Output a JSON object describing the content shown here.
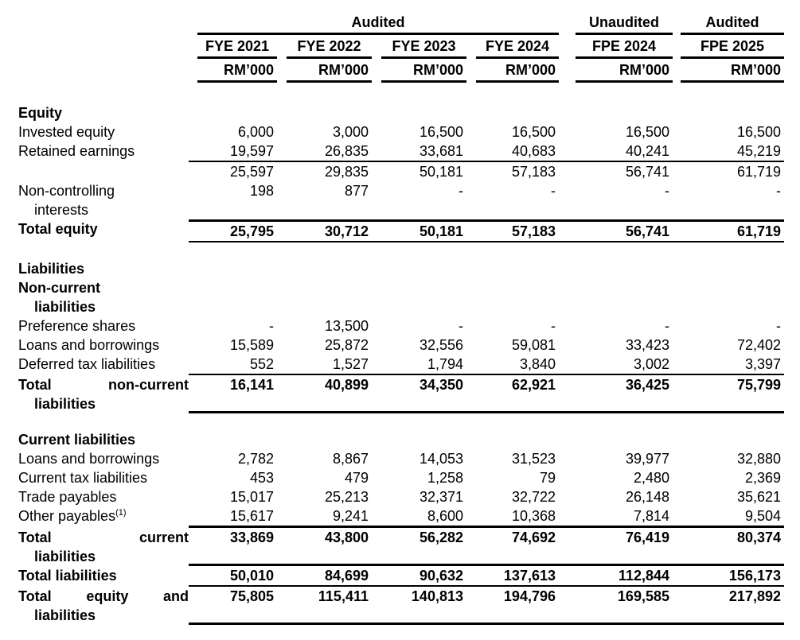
{
  "header": {
    "groups": [
      {
        "label": "Audited",
        "span": 4
      },
      {
        "label": "Unaudited",
        "span": 1
      },
      {
        "label": "Audited",
        "span": 1
      }
    ],
    "columns": [
      "FYE 2021",
      "FYE 2022",
      "FYE 2023",
      "FYE 2024",
      "FPE 2024",
      "FPE 2025"
    ],
    "units": [
      "RM’000",
      "RM’000",
      "RM’000",
      "RM’000",
      "RM’000",
      "RM’000"
    ]
  },
  "rows": [
    {
      "type": "section",
      "lines": [
        "Equity"
      ]
    },
    {
      "type": "item",
      "lines": [
        "Invested equity"
      ],
      "values": [
        "6,000",
        "3,000",
        "16,500",
        "16,500",
        "16,500",
        "16,500"
      ]
    },
    {
      "type": "item",
      "lines": [
        "Retained earnings"
      ],
      "values": [
        "19,597",
        "26,835",
        "33,681",
        "40,683",
        "40,241",
        "45,219"
      ],
      "border_bottom": "thin"
    },
    {
      "type": "item",
      "lines": [],
      "values": [
        "25,597",
        "29,835",
        "50,181",
        "57,183",
        "56,741",
        "61,719"
      ]
    },
    {
      "type": "item",
      "lines": [
        "Non-controlling",
        "interests"
      ],
      "values": [
        "198",
        "877",
        "-",
        "-",
        "-",
        "-"
      ],
      "pad": true
    },
    {
      "type": "total",
      "lines": [
        "Total equity"
      ],
      "values": [
        "25,795",
        "30,712",
        "50,181",
        "57,183",
        "56,741",
        "61,719"
      ],
      "border_top": "thick",
      "border_bottom": "thin"
    },
    {
      "type": "spacer"
    },
    {
      "type": "section",
      "lines": [
        "Liabilities"
      ]
    },
    {
      "type": "section",
      "lines": [
        "Non-current",
        "liabilities"
      ]
    },
    {
      "type": "item",
      "lines": [
        "Preference shares"
      ],
      "values": [
        "-",
        "13,500",
        "-",
        "-",
        "-",
        "-"
      ]
    },
    {
      "type": "item",
      "lines": [
        "Loans and borrowings"
      ],
      "values": [
        "15,589",
        "25,872",
        "32,556",
        "59,081",
        "33,423",
        "72,402"
      ]
    },
    {
      "type": "item",
      "lines": [
        "Deferred tax liabilities"
      ],
      "values": [
        "552",
        "1,527",
        "1,794",
        "3,840",
        "3,002",
        "3,397"
      ],
      "border_bottom": "thin"
    },
    {
      "type": "total",
      "lines": [
        "Total non-current",
        "liabilities"
      ],
      "justify": true,
      "values": [
        "16,141",
        "40,899",
        "34,350",
        "62,921",
        "36,425",
        "75,799"
      ],
      "border_bottom": "thick",
      "pad": true
    },
    {
      "type": "spacer"
    },
    {
      "type": "section",
      "lines": [
        "Current liabilities"
      ]
    },
    {
      "type": "item",
      "lines": [
        "Loans and borrowings"
      ],
      "values": [
        "2,782",
        "8,867",
        "14,053",
        "31,523",
        "39,977",
        "32,880"
      ]
    },
    {
      "type": "item",
      "lines": [
        "Current tax liabilities"
      ],
      "values": [
        "453",
        "479",
        "1,258",
        "79",
        "2,480",
        "2,369"
      ]
    },
    {
      "type": "item",
      "lines": [
        "Trade payables"
      ],
      "values": [
        "15,017",
        "25,213",
        "32,371",
        "32,722",
        "26,148",
        "35,621"
      ]
    },
    {
      "type": "item",
      "lines": [
        "Other payables"
      ],
      "sup": "(1)",
      "values": [
        "15,617",
        "9,241",
        "8,600",
        "10,368",
        "7,814",
        "9,504"
      ],
      "border_bottom": "thick"
    },
    {
      "type": "total",
      "lines": [
        "Total current",
        "liabilities"
      ],
      "justify": true,
      "values": [
        "33,869",
        "43,800",
        "56,282",
        "74,692",
        "76,419",
        "80,374"
      ],
      "border_bottom": "thick",
      "pad": true
    },
    {
      "type": "total",
      "lines": [
        "Total liabilities"
      ],
      "values": [
        "50,010",
        "84,699",
        "90,632",
        "137,613",
        "112,844",
        "156,173"
      ],
      "border_bottom": "thin"
    },
    {
      "type": "total",
      "lines": [
        "Total equity and",
        "liabilities"
      ],
      "justify": true,
      "values": [
        "75,805",
        "115,411",
        "140,813",
        "194,796",
        "169,585",
        "217,892"
      ],
      "border_bottom": "thick",
      "pad": true
    }
  ]
}
